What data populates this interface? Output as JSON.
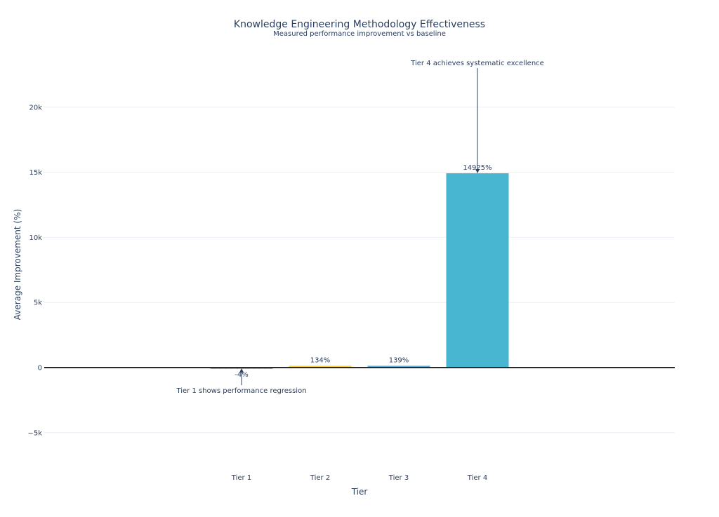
{
  "chart_data": {
    "type": "bar",
    "title": "Knowledge Engineering Methodology Effectiveness",
    "subtitle": "Measured performance improvement vs baseline",
    "xlabel": "Tier",
    "ylabel": "Average Improvement (%)",
    "categories": [
      "Tier 1",
      "Tier 2",
      "Tier 3",
      "Tier 4"
    ],
    "values": [
      -4,
      134,
      139,
      14925
    ],
    "value_labels": [
      "-4%",
      "134%",
      "139%",
      "14925%"
    ],
    "bar_colors": [
      "#95a5a6",
      "#f4d03f",
      "#5dade2",
      "#48b5d1"
    ],
    "ylim": [
      -7500,
      23500
    ],
    "yticks": [
      -5000,
      0,
      5000,
      10000,
      15000,
      20000
    ],
    "ytick_labels": [
      "−5k",
      "0",
      "5k",
      "10k",
      "15k",
      "20k"
    ],
    "grid": true,
    "legend": "none",
    "annotations": [
      {
        "category": "Tier 1",
        "text": "Tier 1 shows performance regression",
        "position": "below"
      },
      {
        "category": "Tier 4",
        "text": "Tier 4 achieves systematic excellence",
        "position": "above"
      }
    ]
  }
}
